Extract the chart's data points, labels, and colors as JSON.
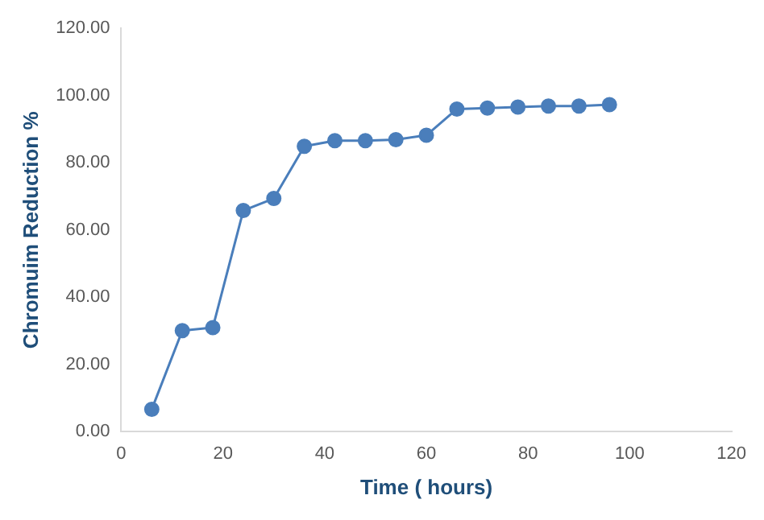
{
  "chart_data": {
    "type": "line",
    "xlabel": "Time ( hours)",
    "ylabel": "Chromuim Reduction %",
    "x": [
      6,
      12,
      18,
      24,
      30,
      36,
      42,
      48,
      54,
      60,
      66,
      72,
      78,
      84,
      90,
      96
    ],
    "series": [
      {
        "color": "#4a7ebb",
        "values": [
          6.7,
          30.1,
          31.0,
          65.8,
          69.4,
          84.9,
          86.6,
          86.6,
          86.9,
          88.2,
          96.0,
          96.3,
          96.6,
          96.9,
          96.9,
          97.3
        ]
      }
    ],
    "xlim": [
      0,
      120
    ],
    "xticks": [
      0,
      20,
      40,
      60,
      80,
      100,
      120
    ],
    "ylim": [
      0,
      120
    ],
    "yticks": [
      {
        "value": 0,
        "label": "0.00"
      },
      {
        "value": 20,
        "label": "20.00"
      },
      {
        "value": 40,
        "label": "40.00"
      },
      {
        "value": 60,
        "label": "60.00"
      },
      {
        "value": 80,
        "label": "80.00"
      },
      {
        "value": 100,
        "label": "100.00"
      },
      {
        "value": 120,
        "label": "120.00"
      }
    ],
    "grid": false,
    "legend": false,
    "marker": "circle",
    "line_style": "solid"
  }
}
